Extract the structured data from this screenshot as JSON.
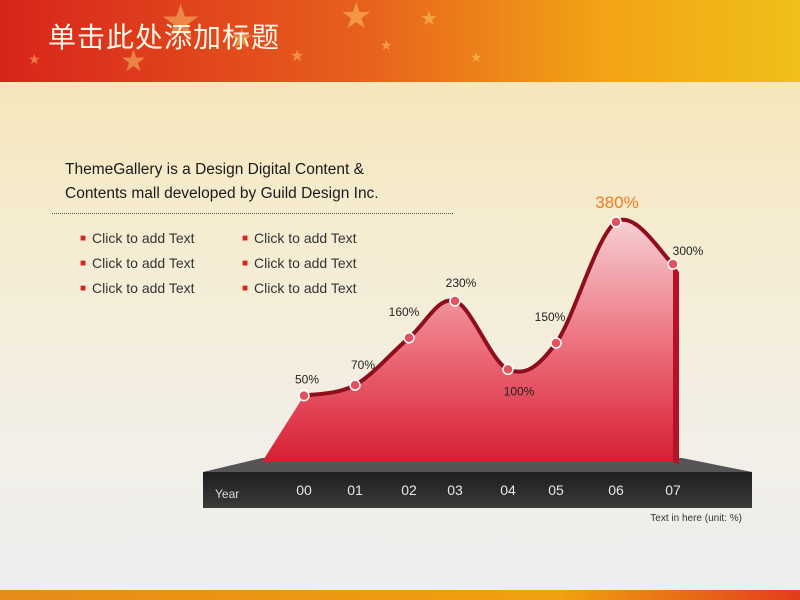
{
  "slide": {
    "title": "单击此处添加标题",
    "intro_line1": "ThemeGallery  is a Design Digital Content &",
    "intro_line2": "Contents mall developed by Guild Design Inc.",
    "bullets": [
      "Click to add Text",
      "Click to add Text",
      "Click to add Text",
      "Click to add Text",
      "Click to add Text",
      "Click to add Text"
    ],
    "colors": {
      "header_start": "#d8241b",
      "header_end": "#f0c018",
      "area_fill": "#e23a4c",
      "accent_label": "#f07a22",
      "axis_bar": "#2f2f2f"
    }
  },
  "chart_data": {
    "type": "area",
    "x": [
      "00",
      "01",
      "02",
      "03",
      "04",
      "05",
      "06",
      "07"
    ],
    "values": [
      50,
      70,
      160,
      230,
      100,
      150,
      380,
      300
    ],
    "data_labels": [
      "50%",
      "70%",
      "160%",
      "230%",
      "100%",
      "150%",
      "380%",
      "300%"
    ],
    "highlight_index": 6,
    "xlabel": "Year",
    "note": "Text in here  (unit: %)",
    "ylim": [
      0,
      380
    ],
    "grid": false,
    "legend": "none"
  }
}
